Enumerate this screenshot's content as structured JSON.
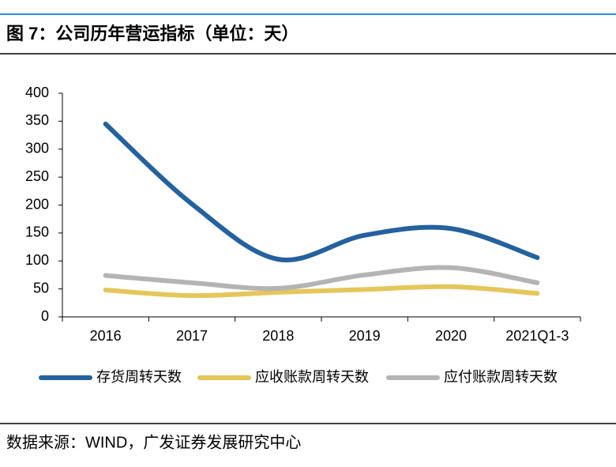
{
  "chart_data": {
    "type": "line",
    "title": "图 7：公司历年营运指标（单位：天）",
    "source": "数据来源：WIND，广发证券发展研究中心",
    "categories": [
      "2016",
      "2017",
      "2018",
      "2019",
      "2020",
      "2021Q1-3"
    ],
    "series": [
      {
        "name": "存货周转天数",
        "color": "#24619e",
        "values": [
          345,
          202,
          103,
          146,
          158,
          106
        ]
      },
      {
        "name": "应收账款周转天数",
        "color": "#e5c65a",
        "values": [
          48,
          38,
          44,
          49,
          54,
          42
        ]
      },
      {
        "name": "应付账款周转天数",
        "color": "#b4b4b4",
        "values": [
          74,
          61,
          51,
          75,
          88,
          61
        ]
      }
    ],
    "ylim": [
      0,
      400
    ],
    "yticks": [
      0,
      50,
      100,
      150,
      200,
      250,
      300,
      350,
      400
    ],
    "smooth": true,
    "legend": "bottom"
  }
}
